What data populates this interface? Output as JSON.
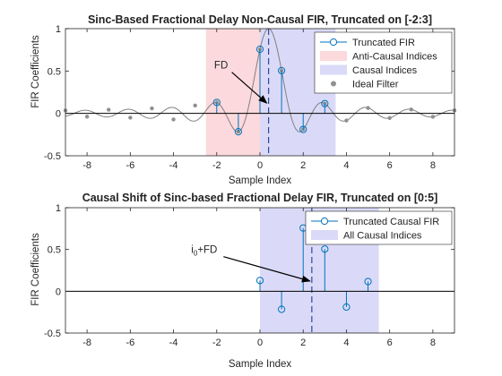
{
  "chart_data": [
    {
      "type": "line",
      "title": "Sinc-Based Fractional Delay Non-Causal FIR, Truncated on [-2:3]",
      "xlabel": "Sample Index",
      "ylabel": "FIR Coefficients",
      "xlim": [
        -9,
        9
      ],
      "ylim": [
        -0.5,
        1
      ],
      "xticks": [
        -8,
        -6,
        -4,
        -2,
        0,
        2,
        4,
        6,
        8
      ],
      "yticks": [
        -0.5,
        0,
        0.5,
        1
      ],
      "delay": 0.4,
      "regions": [
        {
          "name": "Anti-Causal Indices",
          "x": [
            -2.5,
            0
          ],
          "color": "#fbd9dc"
        },
        {
          "name": "Causal Indices",
          "x": [
            0,
            3.5
          ],
          "color": "#dadaf8"
        }
      ],
      "ideal_points": {
        "name": "Ideal Filter",
        "x": [
          -9,
          -8,
          -7,
          -6,
          -5,
          -4,
          -3,
          -2,
          -1,
          0,
          1,
          2,
          3,
          4,
          5,
          6,
          7,
          8,
          9
        ],
        "y": [
          0.034,
          -0.039,
          0.043,
          -0.05,
          0.059,
          -0.072,
          0.093,
          0.129,
          -0.216,
          0.757,
          0.505,
          -0.189,
          0.116,
          -0.084,
          0.065,
          -0.054,
          0.046,
          -0.04,
          0.035
        ]
      },
      "stems": {
        "name": "Truncated FIR",
        "x": [
          -2,
          -1,
          0,
          1,
          2,
          3
        ],
        "y": [
          0.129,
          -0.216,
          0.757,
          0.505,
          -0.189,
          0.116
        ]
      },
      "annotation": {
        "text": "FD",
        "x": -1.8,
        "y": 0.57,
        "arrow_to": [
          0.4,
          0.1
        ]
      },
      "legend": {
        "position": "top-right",
        "entries": [
          "Truncated FIR",
          "Anti-Causal Indices",
          "Causal Indices",
          "Ideal Filter"
        ]
      },
      "colors": {
        "stem": "#0072bd",
        "ideal": "#808080",
        "dash": "#1f3a93"
      }
    },
    {
      "type": "line",
      "title": "Causal Shift of Sinc-based Fractional Delay FIR, Truncated on [0:5]",
      "xlabel": "Sample Index",
      "ylabel": "FIR Coefficients",
      "xlim": [
        -9,
        9
      ],
      "ylim": [
        -0.5,
        1
      ],
      "xticks": [
        -8,
        -6,
        -4,
        -2,
        0,
        2,
        4,
        6,
        8
      ],
      "yticks": [
        -0.5,
        0,
        0.5,
        1
      ],
      "delay": 2.4,
      "regions": [
        {
          "name": "All Causal Indices",
          "x": [
            0,
            5.5
          ],
          "color": "#dadaf8"
        }
      ],
      "stems": {
        "name": "Truncated Causal FIR",
        "x": [
          0,
          1,
          2,
          3,
          4,
          5
        ],
        "y": [
          0.129,
          -0.216,
          0.757,
          0.505,
          -0.189,
          0.116
        ]
      },
      "annotation": {
        "text": "i",
        "sub": "0",
        "suffix": "+FD",
        "x": -2.6,
        "y": 0.5,
        "arrow_to": [
          2.4,
          0.1
        ]
      },
      "legend": {
        "position": "top-right",
        "entries": [
          "Truncated Causal FIR",
          "All Causal Indices"
        ]
      },
      "colors": {
        "stem": "#0072bd",
        "dash": "#1f3a93"
      }
    }
  ]
}
